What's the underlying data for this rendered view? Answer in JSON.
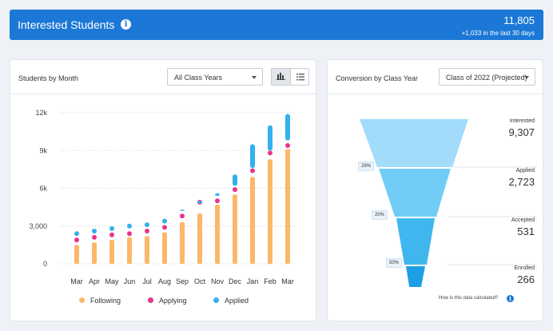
{
  "banner": {
    "title": "Interested Students",
    "icon": "info-icon",
    "count": "11,805",
    "sub": "+1,033 in the last 30 days"
  },
  "left_card": {
    "title": "Students by Month",
    "select_value": "All Class Years",
    "toggle_icons": [
      "bar-chart-icon",
      "list-icon"
    ]
  },
  "right_card": {
    "title": "Conversion by Class Year",
    "select_value": "Class of 2022 (Projected)",
    "footer_note": "How is this data calculated?",
    "footer_icon": "info-icon"
  },
  "colors": {
    "following": "#fbb868",
    "applying": "#e8358a",
    "applied": "#33b0ee",
    "banner": "#1b78d6"
  },
  "chart_data": [
    {
      "type": "bar",
      "categories": [
        "Mar",
        "Apr",
        "May",
        "Jun",
        "Jul",
        "Aug",
        "Sep",
        "Oct",
        "Nov",
        "Dec",
        "Jan",
        "Feb",
        "Mar"
      ],
      "ylim": [
        0,
        12000
      ],
      "yticks": [
        0,
        3000,
        6000,
        9000,
        12000
      ],
      "ytick_labels": [
        "0",
        "3,000",
        "6k",
        "9k",
        "12k"
      ],
      "grid": true,
      "legend": "bottom",
      "series": [
        {
          "name": "Following",
          "values": [
            1500,
            1700,
            1900,
            2100,
            2200,
            2500,
            3300,
            4000,
            4700,
            5500,
            6900,
            8300,
            9100
          ]
        },
        {
          "name": "Applying",
          "values": [
            1900,
            2100,
            2300,
            2400,
            2600,
            2900,
            3800,
            4900,
            5000,
            5900,
            7400,
            8800,
            9400
          ]
        },
        {
          "name": "Applied",
          "values": [
            2400,
            2600,
            2800,
            3000,
            3100,
            3400,
            [
              4200,
              4300
            ],
            [
              4800,
              5000
            ],
            [
              5400,
              5600
            ],
            [
              6200,
              7100
            ],
            [
              7600,
              9500
            ],
            [
              9000,
              11000
            ],
            [
              9800,
              11900
            ]
          ]
        }
      ]
    },
    {
      "type": "funnel",
      "stages": [
        {
          "label": "Interested",
          "value": "9,307"
        },
        {
          "label": "Applied",
          "value": "2,723"
        },
        {
          "label": "Accepted",
          "value": "531"
        },
        {
          "label": "Enrolled",
          "value": "266"
        }
      ],
      "conversion_rates": [
        "29%",
        "20%",
        "50%"
      ]
    }
  ]
}
